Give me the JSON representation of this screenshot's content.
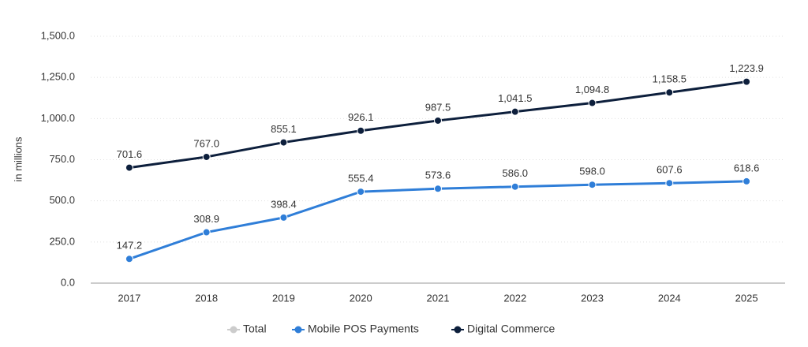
{
  "chart_data": {
    "type": "line",
    "y_label": "in millions",
    "categories": [
      "2017",
      "2018",
      "2019",
      "2020",
      "2021",
      "2022",
      "2023",
      "2024",
      "2025"
    ],
    "series": [
      {
        "name": "Total",
        "color": "#cccccc",
        "hidden": true,
        "values": [
          null,
          null,
          null,
          null,
          null,
          null,
          null,
          null,
          null
        ]
      },
      {
        "name": "Mobile POS Payments",
        "color": "#2f7ed8",
        "values": [
          147.2,
          308.9,
          398.4,
          555.4,
          573.6,
          586.0,
          598.0,
          607.6,
          618.6
        ],
        "value_labels": [
          "147.2",
          "308.9",
          "398.4",
          "555.4",
          "573.6",
          "586.0",
          "598.0",
          "607.6",
          "618.6"
        ]
      },
      {
        "name": "Digital Commerce",
        "color": "#0d1f3c",
        "values": [
          701.6,
          767.0,
          855.1,
          926.1,
          987.5,
          1041.5,
          1094.8,
          1158.5,
          1223.9
        ],
        "value_labels": [
          "701.6",
          "767.0",
          "855.1",
          "926.1",
          "987.5",
          "1,041.5",
          "1,094.8",
          "1,158.5",
          "1,223.9"
        ]
      }
    ],
    "ylim": [
      0,
      1500
    ],
    "yticks": [
      {
        "value": 0,
        "label": "0.0"
      },
      {
        "value": 250,
        "label": "250.0"
      },
      {
        "value": 500,
        "label": "500.0"
      },
      {
        "value": 750,
        "label": "750.0"
      },
      {
        "value": 1000,
        "label": "1,000.0"
      },
      {
        "value": 1250,
        "label": "1,250.0"
      },
      {
        "value": 1500,
        "label": "1,500.0"
      }
    ],
    "grid": true,
    "legend": "bottom"
  }
}
